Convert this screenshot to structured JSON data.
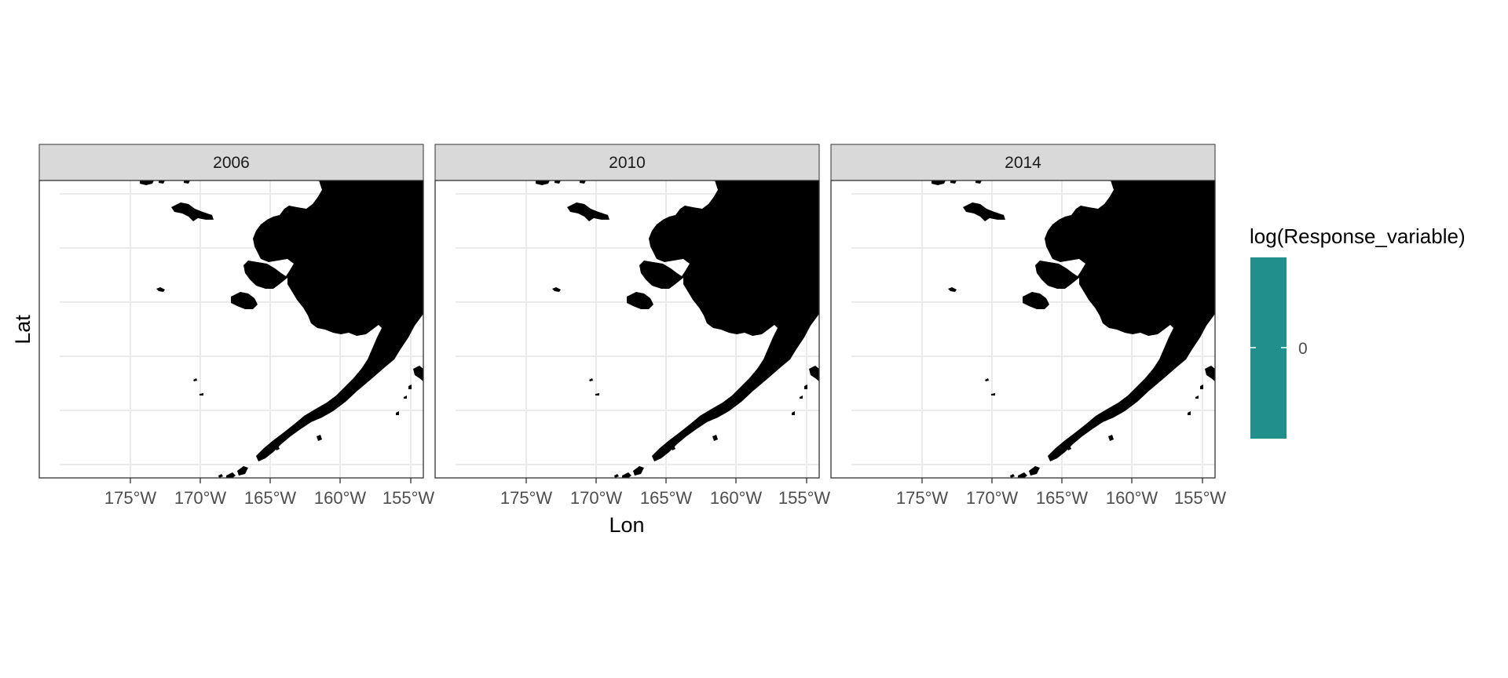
{
  "map": {
    "facets": [
      {
        "label": "2006"
      },
      {
        "label": "2010"
      },
      {
        "label": "2014"
      }
    ],
    "x_axis": {
      "title": "Lon",
      "ticks": [
        "175°W",
        "170°W",
        "165°W",
        "160°W",
        "155°W"
      ]
    },
    "y_axis": {
      "title": "Lat"
    },
    "legend": {
      "title": "log(Response_variable)",
      "labels": [
        "0"
      ],
      "color": "#21908C"
    },
    "colors": {
      "land": "#000000",
      "strip": "#d9d9d9",
      "grid": "#ebebeb",
      "border": "#333333"
    }
  }
}
